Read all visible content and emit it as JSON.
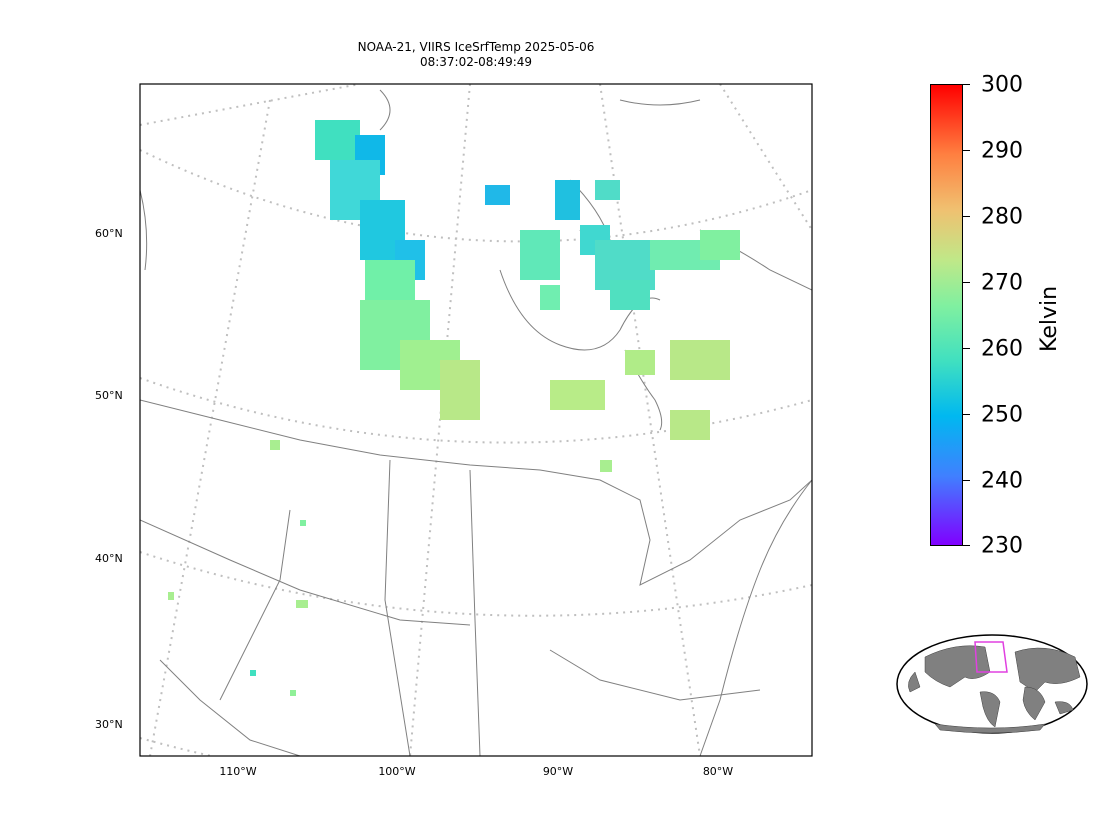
{
  "title": {
    "line1": "NOAA-21, VIIRS IceSrfTemp 2025-05-06",
    "line2": "08:37:02-08:49:49"
  },
  "map": {
    "projection": "lambert-conformal",
    "region": "North America (Canada / USA)",
    "lat_ticks": [
      "60°N",
      "50°N",
      "40°N",
      "30°N"
    ],
    "lon_ticks": [
      "110°W",
      "100°W",
      "90°W",
      "80°W"
    ],
    "colors": {
      "coastline": "#808080",
      "graticule": "#bfbfbf",
      "frame": "#000000"
    }
  },
  "colorbar": {
    "label": "Kelvin",
    "ticks": [
      "300",
      "290",
      "280",
      "270",
      "260",
      "250",
      "240",
      "230"
    ],
    "min": 230,
    "max": 300,
    "colormap": "rainbow"
  },
  "inset": {
    "type": "globe-locator",
    "land_color": "#808080",
    "box_color": "#e040e0"
  }
}
